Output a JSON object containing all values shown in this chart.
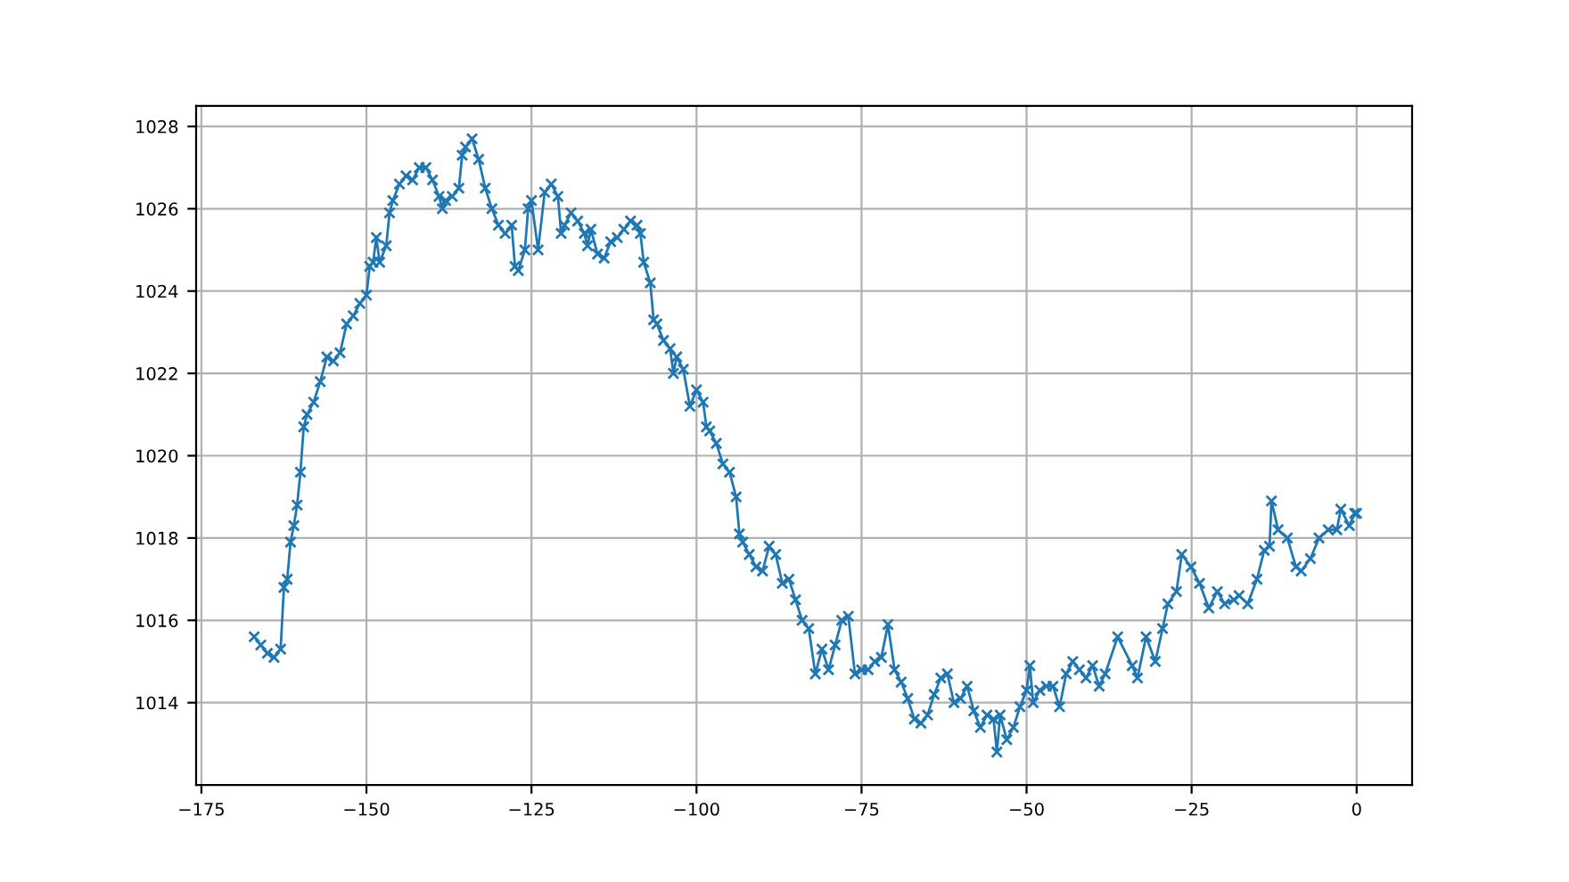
{
  "chart_data": {
    "type": "line",
    "color": "#1f77b4",
    "marker": "cross",
    "line_style": "solid",
    "grid": true,
    "xlim": [
      -175.8,
      8.4
    ],
    "ylim": [
      1012.0,
      1028.5
    ],
    "xticks": [
      {
        "value": -175,
        "label": "−175"
      },
      {
        "value": -150,
        "label": "−150"
      },
      {
        "value": -125,
        "label": "−125"
      },
      {
        "value": -100,
        "label": "−100"
      },
      {
        "value": -75,
        "label": "−75"
      },
      {
        "value": -50,
        "label": "−50"
      },
      {
        "value": -25,
        "label": "−25"
      },
      0
    ],
    "yticks": [
      1014,
      1016,
      1018,
      1020,
      1022,
      1024,
      1026,
      1028
    ],
    "x": [
      -167,
      -166,
      -165,
      -164,
      -163,
      -162.5,
      -162,
      -161.5,
      -161,
      -160.5,
      -160,
      -159.5,
      -159,
      -158,
      -157,
      -156,
      -155,
      -154,
      -153,
      -152,
      -151,
      -150,
      -149.5,
      -149,
      -148.5,
      -148,
      -147,
      -146.5,
      -146,
      -145,
      -144,
      -143,
      -142,
      -141,
      -140,
      -139,
      -138.5,
      -138,
      -137,
      -136,
      -135.5,
      -135,
      -134,
      -133,
      -132,
      -131,
      -130,
      -129,
      -128,
      -127.5,
      -127,
      -126,
      -125.5,
      -125,
      -124,
      -123,
      -122,
      -121,
      -120.5,
      -120,
      -119,
      -118,
      -117,
      -116.5,
      -116,
      -115,
      -114,
      -113,
      -112,
      -111,
      -110,
      -109,
      -108.5,
      -108,
      -107,
      -106.5,
      -106,
      -105,
      -104,
      -103.5,
      -103,
      -102,
      -101,
      -100,
      -99,
      -98.5,
      -98,
      -97,
      -96,
      -95,
      -94,
      -93.5,
      -93,
      -92,
      -91,
      -90,
      -89,
      -88,
      -87,
      -86,
      -85,
      -84,
      -83,
      -82,
      -81,
      -80,
      -79,
      -78,
      -77,
      -76,
      -75,
      -74,
      -73,
      -72,
      -71,
      -70,
      -69,
      -68,
      -67,
      -66,
      -65,
      -64,
      -63,
      -62,
      -61,
      -60,
      -59,
      -58,
      -57,
      -56,
      -55,
      -54.5,
      -54,
      -53,
      -52,
      -51,
      -50,
      -49.5,
      -49,
      -48,
      -47,
      -46,
      -45,
      -44,
      -43,
      -42,
      -41,
      -40,
      -39,
      -38.1,
      -36.2,
      -34.0,
      -33.2,
      -31.9,
      -30.5,
      -29.4,
      -28.6,
      -27.3,
      -26.5,
      -25.1,
      -23.8,
      -22.4,
      -21.1,
      -20.0,
      -18.6,
      -17.8,
      -16.5,
      -15.1,
      -14.0,
      -13.2,
      -12.9,
      -11.9,
      -10.5,
      -9.2,
      -8.4,
      -7.0,
      -5.7,
      -4.3,
      -3.0,
      -2.4,
      -1.1,
      -0.3,
      0
    ],
    "values": [
      1015.6,
      1015.4,
      1015.2,
      1015.1,
      1015.3,
      1016.8,
      1017.0,
      1017.9,
      1018.3,
      1018.8,
      1019.6,
      1020.7,
      1021.0,
      1021.3,
      1021.8,
      1022.4,
      1022.3,
      1022.5,
      1023.2,
      1023.4,
      1023.7,
      1023.9,
      1024.6,
      1024.7,
      1025.3,
      1024.7,
      1025.1,
      1025.9,
      1026.2,
      1026.6,
      1026.8,
      1026.7,
      1027.0,
      1027.0,
      1026.7,
      1026.3,
      1026.0,
      1026.2,
      1026.3,
      1026.5,
      1027.3,
      1027.5,
      1027.7,
      1027.2,
      1026.5,
      1026.0,
      1025.6,
      1025.4,
      1025.6,
      1024.6,
      1024.5,
      1025.0,
      1026.0,
      1026.2,
      1025.0,
      1026.4,
      1026.6,
      1026.3,
      1025.4,
      1025.6,
      1025.9,
      1025.7,
      1025.4,
      1025.1,
      1025.5,
      1024.9,
      1024.8,
      1025.2,
      1025.3,
      1025.5,
      1025.7,
      1025.6,
      1025.4,
      1024.7,
      1024.2,
      1023.3,
      1023.2,
      1022.8,
      1022.6,
      1022.0,
      1022.4,
      1022.1,
      1021.2,
      1021.6,
      1021.3,
      1020.7,
      1020.6,
      1020.3,
      1019.8,
      1019.6,
      1019.0,
      1018.1,
      1017.9,
      1017.6,
      1017.3,
      1017.2,
      1017.8,
      1017.6,
      1016.9,
      1017.0,
      1016.5,
      1016.0,
      1015.8,
      1014.7,
      1015.3,
      1014.8,
      1015.4,
      1016.0,
      1016.1,
      1014.7,
      1014.8,
      1014.8,
      1015.0,
      1015.1,
      1015.9,
      1014.8,
      1014.5,
      1014.1,
      1013.6,
      1013.5,
      1013.7,
      1014.2,
      1014.6,
      1014.7,
      1014.0,
      1014.1,
      1014.4,
      1013.8,
      1013.4,
      1013.7,
      1013.6,
      1012.8,
      1013.7,
      1013.1,
      1013.4,
      1013.9,
      1014.3,
      1014.9,
      1014.0,
      1014.3,
      1014.4,
      1014.4,
      1013.9,
      1014.7,
      1015.0,
      1014.8,
      1014.6,
      1014.9,
      1014.4,
      1014.7,
      1015.6,
      1014.9,
      1014.6,
      1015.6,
      1015.0,
      1015.8,
      1016.4,
      1016.7,
      1017.6,
      1017.3,
      1016.9,
      1016.3,
      1016.7,
      1016.4,
      1016.5,
      1016.6,
      1016.4,
      1017.0,
      1017.7,
      1017.8,
      1018.9,
      1018.2,
      1018.0,
      1017.3,
      1017.2,
      1017.5,
      1018.0,
      1018.2,
      1018.2,
      1018.7,
      1018.3,
      1018.6,
      1018.6
    ]
  }
}
